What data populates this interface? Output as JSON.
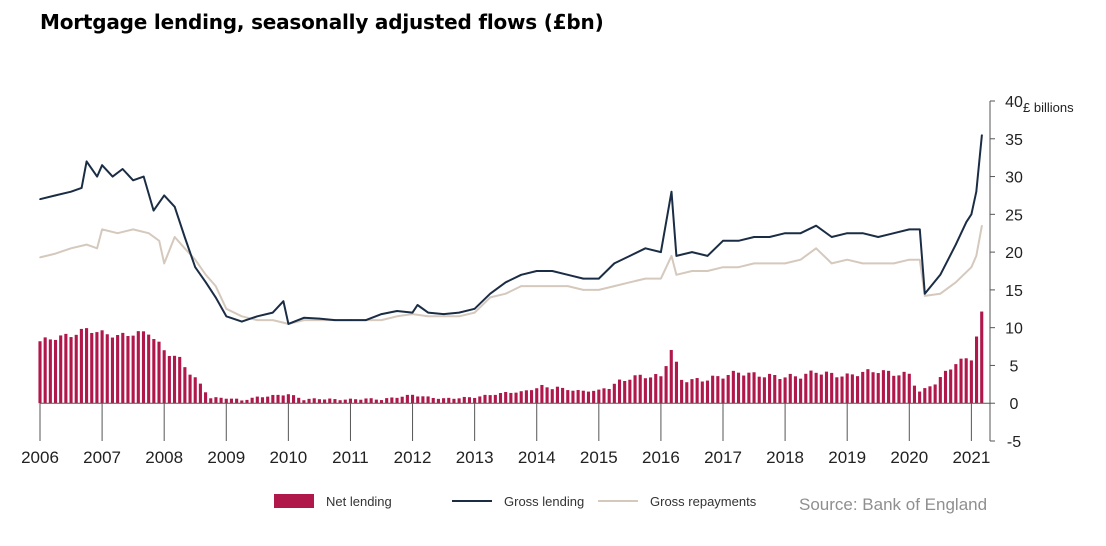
{
  "title": "Mortgage lending, seasonally adjusted flows (£bn)",
  "source": "Source: Bank of England",
  "legend": {
    "net": "Net lending",
    "gross": "Gross lending",
    "repay": "Gross repayments"
  },
  "colors": {
    "net": "#b0174a",
    "gross": "#1b2d45",
    "repay": "#d5c9bd",
    "axis": "#555555"
  },
  "chart_data": {
    "type": "bar",
    "title": "Mortgage lending, seasonally adjusted flows (£bn)",
    "ylabel": "£ billions",
    "ylim": [
      -5,
      40
    ],
    "yticks": [
      -5,
      0,
      5,
      10,
      15,
      20,
      25,
      30,
      35,
      40
    ],
    "xlim": [
      2006,
      2021.3
    ],
    "xticks": [
      "2006",
      "2007",
      "2008",
      "2009",
      "2010",
      "2011",
      "2012",
      "2013",
      "2014",
      "2015",
      "2016",
      "2017",
      "2018",
      "2019",
      "2020",
      "2021"
    ],
    "grid": false,
    "legend_position": "bottom",
    "series": [
      {
        "name": "Net lending",
        "type": "bar",
        "x": [
          2006,
          2006.25,
          2006.5,
          2006.75,
          2007,
          2007.25,
          2007.5,
          2007.75,
          2008,
          2008.25,
          2008.5,
          2008.75,
          2009,
          2009.25,
          2009.5,
          2009.75,
          2010,
          2010.25,
          2010.5,
          2010.75,
          2011,
          2011.25,
          2011.5,
          2011.75,
          2012,
          2012.25,
          2012.5,
          2012.75,
          2013,
          2013.25,
          2013.5,
          2013.75,
          2014,
          2014.25,
          2014.5,
          2014.75,
          2015,
          2015.25,
          2015.5,
          2015.75,
          2016,
          2016.17,
          2016.33,
          2016.5,
          2016.75,
          2017,
          2017.25,
          2017.5,
          2017.75,
          2018,
          2018.25,
          2018.5,
          2018.75,
          2019,
          2019.25,
          2019.5,
          2019.75,
          2020,
          2020.17,
          2020.33,
          2020.5,
          2020.75,
          2021,
          2021.17
        ],
        "values": [
          8.2,
          8.7,
          9.0,
          9.8,
          9.3,
          8.9,
          9.2,
          9.4,
          7.0,
          5.8,
          3.2,
          0.7,
          0.7,
          0.4,
          0.8,
          1.0,
          1.2,
          0.5,
          0.6,
          0.5,
          0.5,
          0.6,
          0.5,
          0.8,
          1.1,
          0.8,
          0.6,
          0.7,
          0.8,
          1.1,
          1.4,
          1.5,
          2.0,
          2.2,
          1.8,
          1.6,
          1.7,
          2.5,
          3.4,
          3.6,
          3.5,
          7.1,
          3.2,
          3.0,
          3.2,
          3.6,
          4.1,
          3.8,
          3.6,
          3.5,
          3.6,
          4.2,
          3.8,
          3.6,
          4.1,
          4.3,
          3.9,
          3.8,
          1.5,
          2.3,
          3.3,
          5.4,
          6.0,
          11.9
        ]
      },
      {
        "name": "Gross lending",
        "type": "line",
        "x": [
          2006,
          2006.25,
          2006.5,
          2006.67,
          2006.75,
          2006.92,
          2007,
          2007.17,
          2007.33,
          2007.5,
          2007.67,
          2007.83,
          2008,
          2008.17,
          2008.33,
          2008.5,
          2008.67,
          2008.83,
          2009,
          2009.25,
          2009.5,
          2009.75,
          2009.92,
          2010,
          2010.25,
          2010.5,
          2010.75,
          2011,
          2011.25,
          2011.5,
          2011.75,
          2012,
          2012.08,
          2012.25,
          2012.5,
          2012.75,
          2013,
          2013.25,
          2013.5,
          2013.75,
          2014,
          2014.25,
          2014.5,
          2014.75,
          2015,
          2015.25,
          2015.5,
          2015.75,
          2016,
          2016.17,
          2016.25,
          2016.5,
          2016.75,
          2017,
          2017.25,
          2017.5,
          2017.75,
          2018,
          2018.25,
          2018.5,
          2018.75,
          2019,
          2019.25,
          2019.5,
          2019.75,
          2020,
          2020.17,
          2020.25,
          2020.5,
          2020.75,
          2020.92,
          2021,
          2021.08,
          2021.17
        ],
        "values": [
          27,
          27.5,
          28,
          28.5,
          32,
          30,
          31.5,
          30,
          31,
          29.5,
          30,
          25.5,
          27.5,
          26,
          22,
          18,
          16,
          14,
          11.5,
          10.8,
          11.5,
          12,
          13.5,
          10.5,
          11.3,
          11.2,
          11,
          11,
          11,
          11.8,
          12.2,
          12,
          13,
          12,
          11.8,
          12,
          12.5,
          14.5,
          16,
          17,
          17.5,
          17.5,
          17,
          16.5,
          16.5,
          18.5,
          19.5,
          20.5,
          20,
          28,
          19.5,
          20,
          19.5,
          21.5,
          21.5,
          22,
          22,
          22.5,
          22.5,
          23.5,
          22,
          22.5,
          22.5,
          22,
          22.5,
          23,
          23,
          14.5,
          17,
          21,
          24,
          25,
          28,
          35.5
        ]
      },
      {
        "name": "Gross repayments",
        "type": "line",
        "x": [
          2006,
          2006.25,
          2006.5,
          2006.75,
          2006.92,
          2007,
          2007.25,
          2007.5,
          2007.75,
          2007.92,
          2008,
          2008.17,
          2008.33,
          2008.5,
          2008.67,
          2008.83,
          2009,
          2009.25,
          2009.5,
          2009.75,
          2010,
          2010.25,
          2010.5,
          2010.75,
          2011,
          2011.25,
          2011.5,
          2011.75,
          2012,
          2012.25,
          2012.5,
          2012.75,
          2013,
          2013.25,
          2013.5,
          2013.75,
          2014,
          2014.25,
          2014.5,
          2014.75,
          2015,
          2015.25,
          2015.5,
          2015.75,
          2016,
          2016.17,
          2016.25,
          2016.5,
          2016.75,
          2017,
          2017.25,
          2017.5,
          2017.75,
          2018,
          2018.25,
          2018.5,
          2018.75,
          2019,
          2019.25,
          2019.5,
          2019.75,
          2020,
          2020.17,
          2020.25,
          2020.5,
          2020.75,
          2021,
          2021.08,
          2021.17
        ],
        "values": [
          19.3,
          19.8,
          20.5,
          21,
          20.5,
          23,
          22.5,
          23,
          22.5,
          21.5,
          18.5,
          22,
          20.5,
          19,
          17,
          15.5,
          12.5,
          11.5,
          11,
          11,
          10.5,
          11,
          11,
          11,
          11,
          11,
          11,
          11.5,
          11.8,
          11.5,
          11.5,
          11.5,
          12,
          14,
          14.5,
          15.5,
          15.5,
          15.5,
          15.5,
          15,
          15,
          15.5,
          16,
          16.5,
          16.5,
          19.5,
          17,
          17.5,
          17.5,
          18,
          18,
          18.5,
          18.5,
          18.5,
          19,
          20.5,
          18.5,
          19,
          18.5,
          18.5,
          18.5,
          19,
          19,
          14.2,
          14.5,
          16,
          18,
          19.5,
          23.5
        ]
      }
    ]
  }
}
